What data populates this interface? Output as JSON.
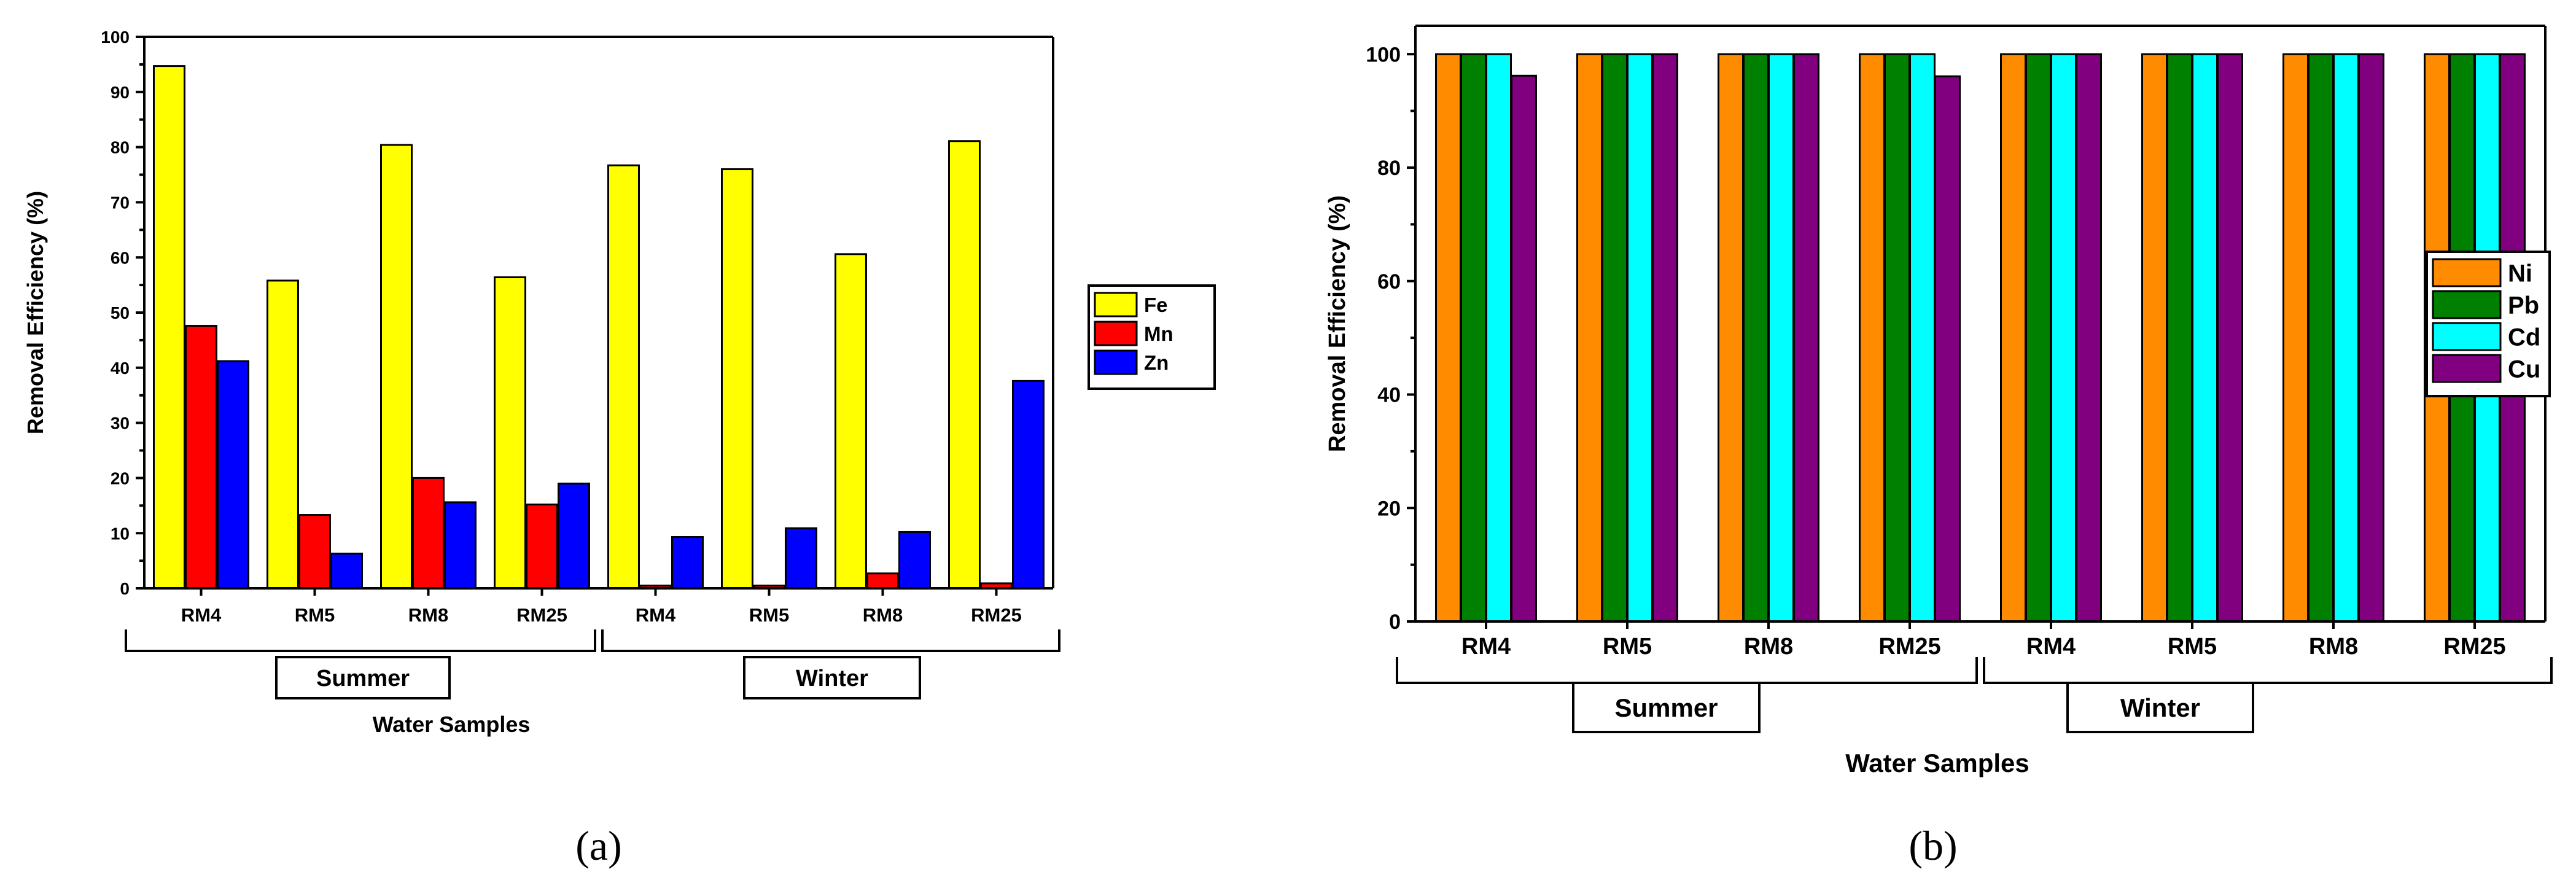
{
  "chart_data": [
    {
      "type": "bar",
      "title": "",
      "xlabel": "Water Samples",
      "ylabel": "Removal Efficiency (%)",
      "ylim": [
        0,
        100
      ],
      "yticks": [
        0,
        10,
        20,
        30,
        40,
        50,
        60,
        70,
        80,
        90,
        100
      ],
      "categories": [
        "RM4",
        "RM5",
        "RM8",
        "RM25",
        "RM4",
        "RM5",
        "RM8",
        "RM25"
      ],
      "groups": [
        {
          "label": "Summer",
          "from": 0,
          "to": 3
        },
        {
          "label": "Winter",
          "from": 4,
          "to": 7
        }
      ],
      "series": [
        {
          "name": "Fe",
          "color": "#ffff00",
          "values": [
            94.7,
            55.8,
            80.4,
            56.4,
            76.7,
            76.0,
            60.6,
            81.1
          ]
        },
        {
          "name": "Mn",
          "color": "#ff0000",
          "values": [
            47.6,
            13.3,
            20.0,
            15.2,
            0.5,
            0.5,
            2.7,
            0.9
          ]
        },
        {
          "name": "Zn",
          "color": "#0000ff",
          "values": [
            41.2,
            6.3,
            15.6,
            19.0,
            9.3,
            10.9,
            10.2,
            37.6
          ]
        }
      ],
      "legend_position": "right",
      "panel_label": "(a)"
    },
    {
      "type": "bar",
      "title": "",
      "xlabel": "Water Samples",
      "ylabel": "Removal Efficiency (%)",
      "ylim": [
        0,
        105
      ],
      "yticks": [
        0,
        20,
        40,
        60,
        80,
        100
      ],
      "categories": [
        "RM4",
        "RM5",
        "RM8",
        "RM25",
        "RM4",
        "RM5",
        "RM8",
        "RM25"
      ],
      "groups": [
        {
          "label": "Summer",
          "from": 0,
          "to": 3
        },
        {
          "label": "Winter",
          "from": 4,
          "to": 7
        }
      ],
      "series": [
        {
          "name": "Ni",
          "color": "#ff8c00",
          "values": [
            100,
            100,
            100,
            100,
            100,
            100,
            100,
            100
          ]
        },
        {
          "name": "Pb",
          "color": "#008000",
          "values": [
            100,
            100,
            100,
            100,
            100,
            100,
            100,
            100
          ]
        },
        {
          "name": "Cd",
          "color": "#00ffff",
          "values": [
            100,
            100,
            100,
            100,
            100,
            100,
            100,
            100
          ]
        },
        {
          "name": "Cu",
          "color": "#800080",
          "values": [
            96.2,
            100,
            100,
            96.1,
            100,
            100,
            100,
            100
          ]
        }
      ],
      "legend_position": "right",
      "panel_label": "(b)"
    }
  ]
}
